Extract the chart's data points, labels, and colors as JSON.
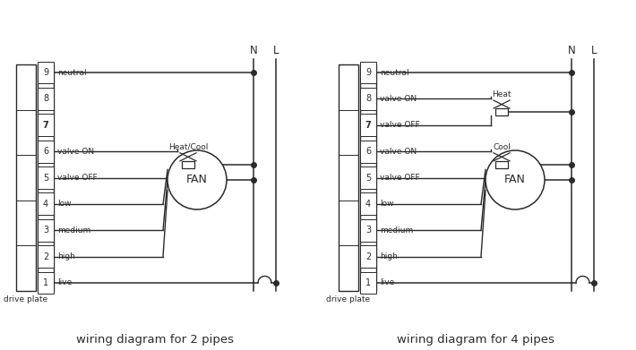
{
  "bg_color": "#ffffff",
  "line_color": "#2a2a2a",
  "text_color": "#2a2a2a",
  "title_2pipe": "wiring diagram for 2 pipes",
  "title_4pipe": "wiring diagram for 4 pipes",
  "label_N": "N",
  "label_L": "L",
  "label_drive_plate": "drive plate",
  "label_fan": "FAN",
  "labels_2pipe": {
    "9": "neutral",
    "8": "",
    "7": "",
    "6": "valve ON",
    "5": "valve OFF",
    "4": "low",
    "3": "medium",
    "2": "high",
    "1": "live"
  },
  "labels_4pipe": {
    "9": "neutral",
    "8": "valve ON",
    "7": "valve OFF",
    "6": "valve ON",
    "5": "valve OFF",
    "4": "low",
    "3": "medium",
    "2": "high",
    "1": "live"
  },
  "valve_label_2pipe": "Heat/Cool",
  "valve_label_heat": "Heat",
  "valve_label_cool": "Cool"
}
